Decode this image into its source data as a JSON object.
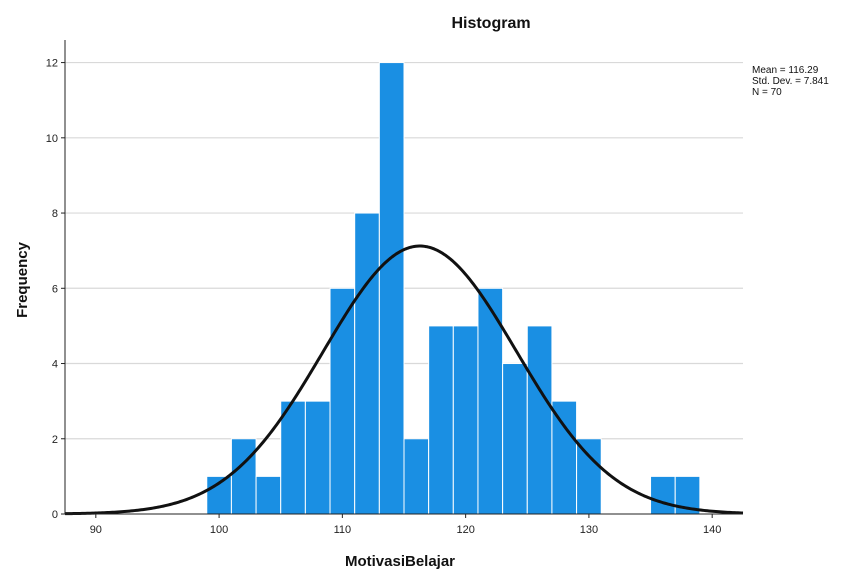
{
  "chart_data": {
    "type": "bar",
    "title": "Histogram",
    "xlabel": "MotivasiBelajar",
    "ylabel": "Frequency",
    "xlim": [
      87.5,
      142.5
    ],
    "ylim": [
      0,
      12.6
    ],
    "x_ticks": [
      90,
      100,
      110,
      120,
      130,
      140
    ],
    "y_ticks": [
      0,
      2,
      4,
      6,
      8,
      10,
      12
    ],
    "grid": "horizontal",
    "bin_width": 2,
    "bins": [
      {
        "start": 99,
        "end": 101,
        "count": 1
      },
      {
        "start": 101,
        "end": 103,
        "count": 2
      },
      {
        "start": 103,
        "end": 105,
        "count": 1
      },
      {
        "start": 105,
        "end": 107,
        "count": 3
      },
      {
        "start": 107,
        "end": 109,
        "count": 3
      },
      {
        "start": 109,
        "end": 111,
        "count": 6
      },
      {
        "start": 111,
        "end": 113,
        "count": 8
      },
      {
        "start": 113,
        "end": 115,
        "count": 12
      },
      {
        "start": 115,
        "end": 117,
        "count": 2
      },
      {
        "start": 117,
        "end": 119,
        "count": 5
      },
      {
        "start": 119,
        "end": 121,
        "count": 5
      },
      {
        "start": 121,
        "end": 123,
        "count": 6
      },
      {
        "start": 123,
        "end": 125,
        "count": 4
      },
      {
        "start": 125,
        "end": 127,
        "count": 5
      },
      {
        "start": 127,
        "end": 129,
        "count": 3
      },
      {
        "start": 129,
        "end": 131,
        "count": 2
      },
      {
        "start": 135,
        "end": 137,
        "count": 1
      },
      {
        "start": 137,
        "end": 139,
        "count": 1
      }
    ],
    "normal_curve": {
      "mean": 116.29,
      "sd": 7.841,
      "n": 70
    },
    "stats_text": [
      "Mean = 116.29",
      "Std. Dev. = 7.841",
      "N = 70"
    ],
    "colors": {
      "bar_fill": "#1a8fe3",
      "bar_edge": "#ffffff",
      "curve": "#111111",
      "grid": "#d9d9d9",
      "axis": "#222222"
    }
  }
}
